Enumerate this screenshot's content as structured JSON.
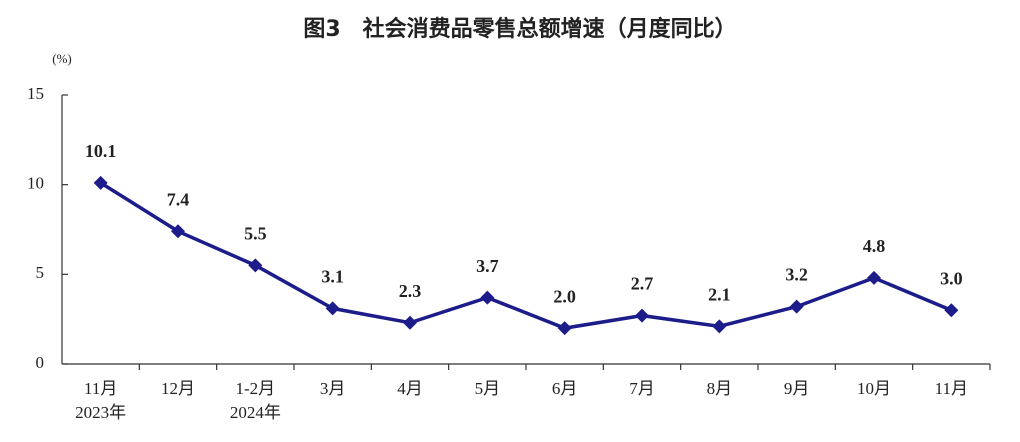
{
  "chart_data": {
    "type": "line",
    "title": "图3　社会消费品零售总额增速（月度同比）",
    "y_label": "(%)",
    "categories": [
      "11月",
      "12月",
      "1-2月",
      "3月",
      "4月",
      "5月",
      "6月",
      "7月",
      "8月",
      "9月",
      "10月",
      "11月"
    ],
    "category_sublabels": [
      "2023年",
      null,
      "2024年",
      null,
      null,
      null,
      null,
      null,
      null,
      null,
      null,
      null
    ],
    "values": [
      10.1,
      7.4,
      5.5,
      3.1,
      2.3,
      3.7,
      2.0,
      2.7,
      2.1,
      3.2,
      4.8,
      3.0
    ],
    "value_labels": [
      "10.1",
      "7.4",
      "5.5",
      "3.1",
      "2.3",
      "3.7",
      "2.0",
      "2.7",
      "2.1",
      "3.2",
      "4.8",
      "3.0"
    ],
    "color": "#1c1c8a",
    "ylim": [
      0,
      15
    ],
    "yticks": [
      0,
      5,
      10,
      15
    ],
    "grid": false
  }
}
